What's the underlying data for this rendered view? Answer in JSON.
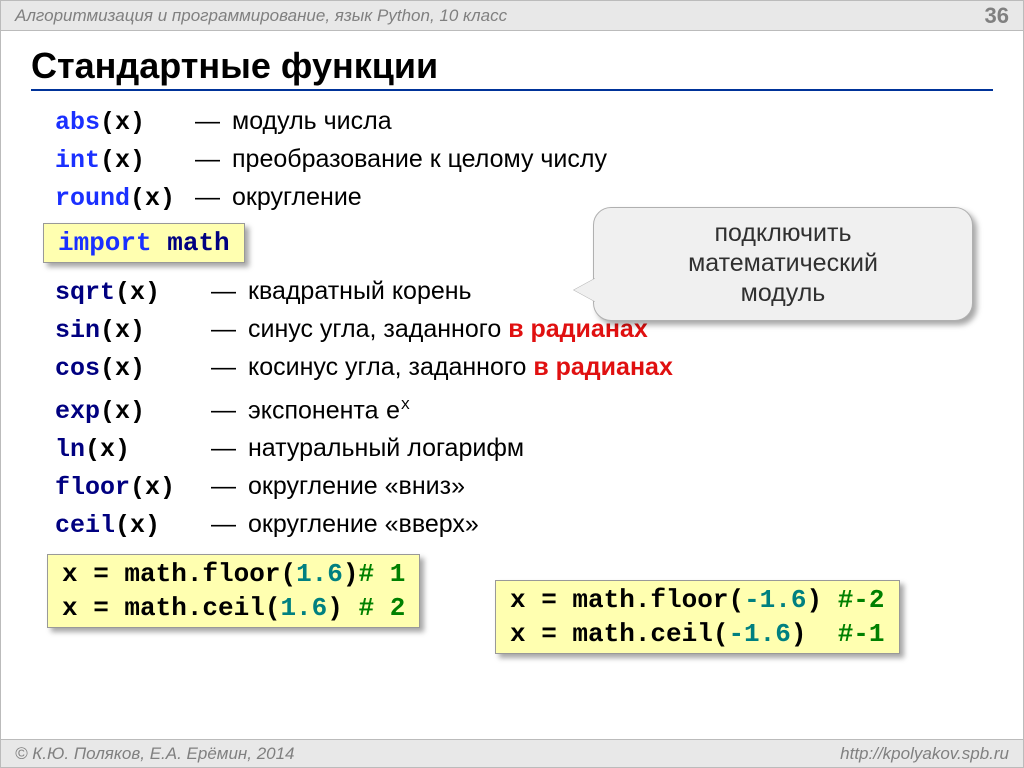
{
  "header": {
    "course": "Алгоритмизация и программирование, язык Python, 10 класс",
    "page": "36"
  },
  "title": "Стандартные функции",
  "callout": {
    "line1": "подключить",
    "line2": "математический",
    "line3": "модуль"
  },
  "import_box": {
    "kw": "import",
    "mod": "math"
  },
  "group1": [
    {
      "fn": "abs",
      "arg": "x",
      "desc": "модуль числа"
    },
    {
      "fn": "int",
      "arg": "x",
      "desc": "преобразование к целому числу"
    },
    {
      "fn": "round",
      "arg": "x",
      "desc": "округление"
    }
  ],
  "group2": [
    {
      "fn": "sqrt",
      "arg": "x",
      "desc": "квадратный корень"
    },
    {
      "fn": "sin",
      "arg": "x",
      "desc_pre": "синус угла, заданного ",
      "desc_red": "в радианах"
    },
    {
      "fn": "cos",
      "arg": "x",
      "desc_pre": "косинус угла, заданного ",
      "desc_red": "в радианах"
    },
    {
      "fn": "exp",
      "arg": "x",
      "desc": "экспонента ",
      "exp_base": "e",
      "exp_sup": "x"
    },
    {
      "fn": "ln",
      "arg": "x",
      "desc": "натуральный логарифм"
    },
    {
      "fn": "floor",
      "arg": "x",
      "desc": "округление «вниз»"
    },
    {
      "fn": "ceil",
      "arg": "x",
      "desc": "округление «вверх»"
    }
  ],
  "example_left": {
    "l1": {
      "a": "x",
      "eq": " = ",
      "m": "math.floor(",
      "v": "1.6",
      "rp": ")",
      "c": "# 1"
    },
    "l2": {
      "a": "x",
      "eq": " = ",
      "m": "math.ceil(",
      "v": "1.6",
      "rp": ") ",
      "c": "# 2"
    }
  },
  "example_right": {
    "l1": {
      "a": "x",
      "eq": " = ",
      "m": "math.floor(",
      "v": "-1.6",
      "rp": ") ",
      "c": "#-2"
    },
    "l2": {
      "a": "x",
      "eq": " = ",
      "m": "math.ceil(",
      "v": "-1.6",
      "rp": ")  ",
      "c": "#-1"
    }
  },
  "footer": {
    "left": "© К.Ю. Поляков, Е.А. Ерёмин, 2014",
    "right": "http://kpolyakov.spb.ru"
  },
  "colors": {
    "keyword_blue": "#1a30ff",
    "navy": "#000080",
    "red": "#e01010",
    "teal": "#008080",
    "green": "#008000",
    "code_bg": "#ffffb0",
    "callout_bg": "#f0f0f0",
    "header_bg": "#e8e8e8",
    "title_underline": "#003399"
  }
}
